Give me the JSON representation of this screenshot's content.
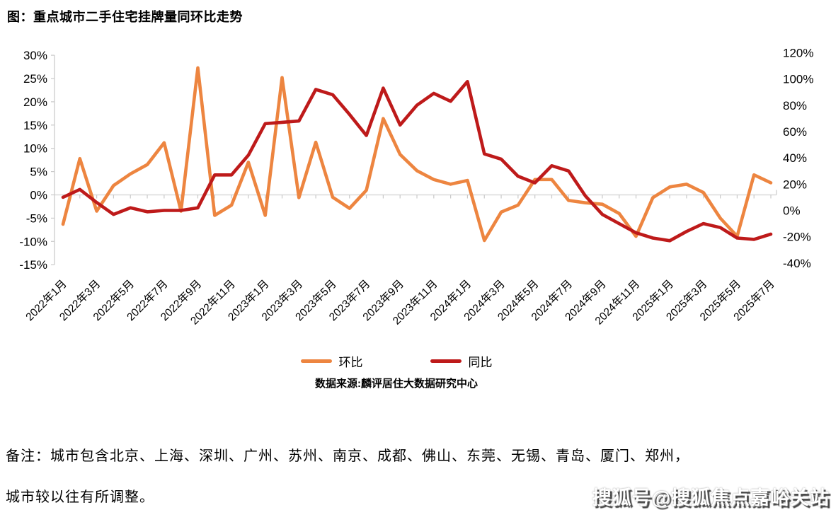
{
  "title": "图：重点城市二手住宅挂牌量同环比走势",
  "chart_data": {
    "type": "line",
    "x": [
      "2022年1月",
      "2022年2月",
      "2022年3月",
      "2022年4月",
      "2022年5月",
      "2022年6月",
      "2022年7月",
      "2022年8月",
      "2022年9月",
      "2022年10月",
      "2022年11月",
      "2022年12月",
      "2023年1月",
      "2023年2月",
      "2023年3月",
      "2023年4月",
      "2023年5月",
      "2023年6月",
      "2023年7月",
      "2023年8月",
      "2023年9月",
      "2023年10月",
      "2023年11月",
      "2023年12月",
      "2024年1月",
      "2024年2月",
      "2024年3月",
      "2024年4月",
      "2024年5月",
      "2024年6月",
      "2024年7月",
      "2024年8月",
      "2024年9月",
      "2024年10月",
      "2024年11月",
      "2024年12月",
      "2025年1月",
      "2025年2月",
      "2025年3月",
      "2025年4月",
      "2025年5月",
      "2025年6月",
      "2025年7月"
    ],
    "x_tick_step": 2,
    "series": [
      {
        "name": "环比",
        "axis": "left",
        "color": "#ED8540",
        "values": [
          -6.3,
          7.8,
          -3.5,
          2.0,
          4.5,
          6.5,
          11.2,
          -3.5,
          27.3,
          -4.4,
          -2.2,
          7.0,
          -4.4,
          25.2,
          -0.6,
          11.3,
          -0.5,
          -2.9,
          1.0,
          16.4,
          8.7,
          5.2,
          3.3,
          2.3,
          3.1,
          -9.8,
          -3.7,
          -2.2,
          3.3,
          3.3,
          -1.2,
          -1.7,
          -2.0,
          -4.0,
          -8.9,
          -0.6,
          1.7,
          2.3,
          0.5,
          -5.0,
          -8.9,
          4.3,
          2.6
        ]
      },
      {
        "name": "同比",
        "axis": "right",
        "color": "#BE1A1A",
        "values": [
          10,
          16,
          6,
          -3,
          2,
          -1,
          0,
          0,
          2,
          27,
          27,
          42,
          66,
          67,
          68,
          92,
          88,
          73,
          57,
          93,
          65,
          80,
          89,
          83,
          98,
          43,
          39,
          26,
          21,
          34,
          30,
          11,
          -3,
          -10,
          -17,
          -21,
          -23,
          -16,
          -10,
          -13,
          -21,
          -22,
          -18
        ]
      }
    ],
    "left_axis": {
      "min": -15,
      "max": 30,
      "tick_values": [
        30,
        25,
        20,
        15,
        10,
        5,
        0,
        -5,
        -10,
        -15
      ],
      "tick_labels": [
        "30%",
        "25%",
        "20%",
        "15%",
        "10%",
        "5%",
        "0%",
        "-5%",
        "-10%",
        "-15%"
      ]
    },
    "right_axis": {
      "min": -40,
      "max": 120,
      "tick_values": [
        120,
        100,
        80,
        60,
        40,
        20,
        0,
        -20,
        -40
      ],
      "tick_labels": [
        "120%",
        "100%",
        "80%",
        "60%",
        "40%",
        "20%",
        "0%",
        "-20%",
        "-40%"
      ]
    },
    "grid": "zero-line-only",
    "legend_position": "bottom",
    "legend": [
      "环比",
      "同比"
    ],
    "source": "数据来源:麟评居住大数据研究中心"
  },
  "notes": {
    "line1": "备注：城市包含北京、上海、深圳、广州、苏州、南京、成都、佛山、东莞、无锡、青岛、厦门、郑州，",
    "line2": "城市较以往有所调整。"
  },
  "watermark": "搜狐号@搜狐焦点嘉峪关站"
}
